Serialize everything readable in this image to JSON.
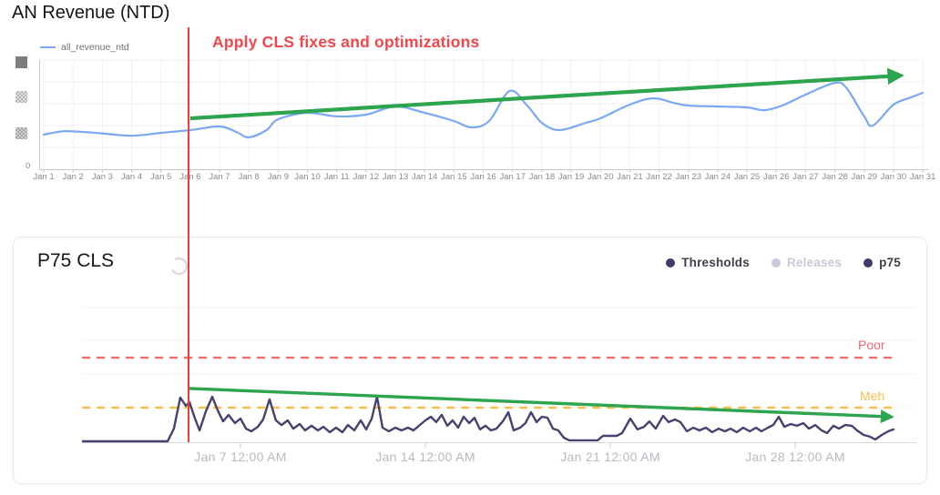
{
  "chart_data": [
    {
      "type": "line",
      "title": "AN Revenue (NTD)",
      "x_ticks": [
        "Jan 1",
        "Jan 2",
        "Jan 3",
        "Jan 4",
        "Jan 5",
        "Jan 6",
        "Jan 7",
        "Jan 8",
        "Jan 9",
        "Jan 10",
        "Jan 11",
        "Jan 12",
        "Jan 13",
        "Jan 14",
        "Jan 15",
        "Jan 16",
        "Jan 17",
        "Jan 18",
        "Jan 19",
        "Jan 20",
        "Jan 21",
        "Jan 22",
        "Jan 23",
        "Jan 24",
        "Jan 25",
        "Jan 26",
        "Jan 27",
        "Jan 28",
        "Jan 29",
        "Jan 30",
        "Jan 31"
      ],
      "x_range": [
        1,
        31
      ],
      "y_ticks_visible": [
        "0"
      ],
      "y_axis_note": "upper y-axis tick values are redacted (3 pixelated squares)",
      "values_scale": "relative 0-1 of plot height (axis values redacted)",
      "grid": true,
      "legend_position": "top-left",
      "series": [
        {
          "name": "all_revenue_ntd",
          "color": "#79a9f5",
          "points": [
            [
              1,
              0.31
            ],
            [
              1.7,
              0.34
            ],
            [
              2.5,
              0.33
            ],
            [
              3,
              0.32
            ],
            [
              4,
              0.3
            ],
            [
              5,
              0.325
            ],
            [
              6,
              0.35
            ],
            [
              7,
              0.382
            ],
            [
              7.6,
              0.33
            ],
            [
              8,
              0.285
            ],
            [
              8.6,
              0.35
            ],
            [
              9,
              0.447
            ],
            [
              10,
              0.504
            ],
            [
              11,
              0.472
            ],
            [
              12,
              0.488
            ],
            [
              13,
              0.561
            ],
            [
              14,
              0.504
            ],
            [
              15,
              0.431
            ],
            [
              15.6,
              0.374
            ],
            [
              16.2,
              0.431
            ],
            [
              16.9,
              0.699
            ],
            [
              17.5,
              0.569
            ],
            [
              18,
              0.415
            ],
            [
              18.6,
              0.35
            ],
            [
              19.5,
              0.415
            ],
            [
              20,
              0.455
            ],
            [
              21,
              0.577
            ],
            [
              21.8,
              0.634
            ],
            [
              22.5,
              0.593
            ],
            [
              23,
              0.569
            ],
            [
              24,
              0.561
            ],
            [
              25,
              0.553
            ],
            [
              25.6,
              0.528
            ],
            [
              26.2,
              0.569
            ],
            [
              27,
              0.667
            ],
            [
              28,
              0.772
            ],
            [
              28.4,
              0.724
            ],
            [
              29,
              0.472
            ],
            [
              29.3,
              0.39
            ],
            [
              30,
              0.577
            ],
            [
              30.6,
              0.642
            ],
            [
              31,
              0.683
            ]
          ]
        }
      ],
      "trend_arrow": {
        "color": "#2da44e",
        "from_day": 6,
        "from_v": 0.455,
        "to_day": 30.2,
        "to_v": 0.837
      },
      "event_line": {
        "day": 6,
        "color": "#f23d3d",
        "label": "Apply CLS fixes and optimizations",
        "label_color": "#f0474d"
      }
    },
    {
      "type": "line",
      "title": "P75 CLS",
      "legend": [
        {
          "label": "Thresholds",
          "color": "#3f3d68",
          "enabled": true
        },
        {
          "label": "Releases",
          "color": "#c9c9dc",
          "enabled": false
        },
        {
          "label": "p75",
          "color": "#3f3d68",
          "enabled": true
        }
      ],
      "x_ticks": [
        "Jan 7 12:00 AM",
        "Jan 14 12:00 AM",
        "Jan 21 12:00 AM",
        "Jan 28 12:00 AM"
      ],
      "x_tick_days": [
        7,
        14,
        21,
        28
      ],
      "x_range": [
        1,
        32.6
      ],
      "values_scale": "relative 0-1 of plot height (no y-axis labels shown)",
      "thresholds": [
        {
          "label": "Poor",
          "v": 0.628,
          "color": "#f5686e"
        },
        {
          "label": "Meh",
          "v": 0.257,
          "color": "#fcbd4d"
        }
      ],
      "series": [
        {
          "name": "p75",
          "color": "#454270",
          "points": [
            [
              1.03,
              0.007
            ],
            [
              4.24,
              0.007
            ],
            [
              4.48,
              0.101
            ],
            [
              4.72,
              0.331
            ],
            [
              4.93,
              0.27
            ],
            [
              5.07,
              0.297
            ],
            [
              5.28,
              0.176
            ],
            [
              5.45,
              0.088
            ],
            [
              5.69,
              0.23
            ],
            [
              5.93,
              0.338
            ],
            [
              6.14,
              0.236
            ],
            [
              6.34,
              0.155
            ],
            [
              6.55,
              0.203
            ],
            [
              6.79,
              0.142
            ],
            [
              7.0,
              0.176
            ],
            [
              7.21,
              0.101
            ],
            [
              7.41,
              0.081
            ],
            [
              7.66,
              0.115
            ],
            [
              7.86,
              0.169
            ],
            [
              8.1,
              0.318
            ],
            [
              8.34,
              0.162
            ],
            [
              8.55,
              0.128
            ],
            [
              8.79,
              0.162
            ],
            [
              9.0,
              0.101
            ],
            [
              9.24,
              0.135
            ],
            [
              9.45,
              0.088
            ],
            [
              9.69,
              0.122
            ],
            [
              9.93,
              0.088
            ],
            [
              10.14,
              0.115
            ],
            [
              10.38,
              0.074
            ],
            [
              10.62,
              0.108
            ],
            [
              10.86,
              0.074
            ],
            [
              11.07,
              0.128
            ],
            [
              11.31,
              0.088
            ],
            [
              11.55,
              0.162
            ],
            [
              11.76,
              0.095
            ],
            [
              11.97,
              0.176
            ],
            [
              12.17,
              0.338
            ],
            [
              12.38,
              0.108
            ],
            [
              12.62,
              0.081
            ],
            [
              12.86,
              0.108
            ],
            [
              13.1,
              0.088
            ],
            [
              13.34,
              0.108
            ],
            [
              13.55,
              0.088
            ],
            [
              13.79,
              0.128
            ],
            [
              14.0,
              0.162
            ],
            [
              14.21,
              0.189
            ],
            [
              14.41,
              0.149
            ],
            [
              14.62,
              0.203
            ],
            [
              14.83,
              0.122
            ],
            [
              15.03,
              0.162
            ],
            [
              15.24,
              0.108
            ],
            [
              15.45,
              0.189
            ],
            [
              15.66,
              0.142
            ],
            [
              15.86,
              0.182
            ],
            [
              16.07,
              0.095
            ],
            [
              16.28,
              0.122
            ],
            [
              16.48,
              0.088
            ],
            [
              16.69,
              0.101
            ],
            [
              16.93,
              0.155
            ],
            [
              17.14,
              0.223
            ],
            [
              17.34,
              0.088
            ],
            [
              17.59,
              0.108
            ],
            [
              17.79,
              0.142
            ],
            [
              18.0,
              0.223
            ],
            [
              18.21,
              0.149
            ],
            [
              18.41,
              0.189
            ],
            [
              18.62,
              0.182
            ],
            [
              18.83,
              0.101
            ],
            [
              19.03,
              0.088
            ],
            [
              19.24,
              0.034
            ],
            [
              19.45,
              0.014
            ],
            [
              20.52,
              0.014
            ],
            [
              20.72,
              0.047
            ],
            [
              21.24,
              0.047
            ],
            [
              21.45,
              0.068
            ],
            [
              21.76,
              0.176
            ],
            [
              22.03,
              0.095
            ],
            [
              22.28,
              0.115
            ],
            [
              22.48,
              0.155
            ],
            [
              22.72,
              0.101
            ],
            [
              23.0,
              0.196
            ],
            [
              23.21,
              0.149
            ],
            [
              23.45,
              0.169
            ],
            [
              23.66,
              0.149
            ],
            [
              23.9,
              0.081
            ],
            [
              24.14,
              0.108
            ],
            [
              24.38,
              0.088
            ],
            [
              24.62,
              0.108
            ],
            [
              24.86,
              0.074
            ],
            [
              25.1,
              0.101
            ],
            [
              25.34,
              0.081
            ],
            [
              25.55,
              0.101
            ],
            [
              25.79,
              0.074
            ],
            [
              26.03,
              0.108
            ],
            [
              26.28,
              0.081
            ],
            [
              26.52,
              0.108
            ],
            [
              26.72,
              0.081
            ],
            [
              26.97,
              0.108
            ],
            [
              27.17,
              0.128
            ],
            [
              27.38,
              0.189
            ],
            [
              27.59,
              0.115
            ],
            [
              27.83,
              0.135
            ],
            [
              28.07,
              0.122
            ],
            [
              28.31,
              0.142
            ],
            [
              28.52,
              0.101
            ],
            [
              28.76,
              0.128
            ],
            [
              29.0,
              0.088
            ],
            [
              29.21,
              0.068
            ],
            [
              29.45,
              0.122
            ],
            [
              29.66,
              0.101
            ],
            [
              29.9,
              0.128
            ],
            [
              30.14,
              0.122
            ],
            [
              30.34,
              0.088
            ],
            [
              30.59,
              0.054
            ],
            [
              30.83,
              0.041
            ],
            [
              31.03,
              0.02
            ],
            [
              31.28,
              0.054
            ],
            [
              31.52,
              0.081
            ],
            [
              31.72,
              0.095
            ]
          ]
        }
      ],
      "trend_arrow": {
        "color": "#2da44e",
        "from_day": 5.07,
        "from_v": 0.399,
        "to_day": 31.6,
        "to_v": 0.189
      }
    }
  ]
}
